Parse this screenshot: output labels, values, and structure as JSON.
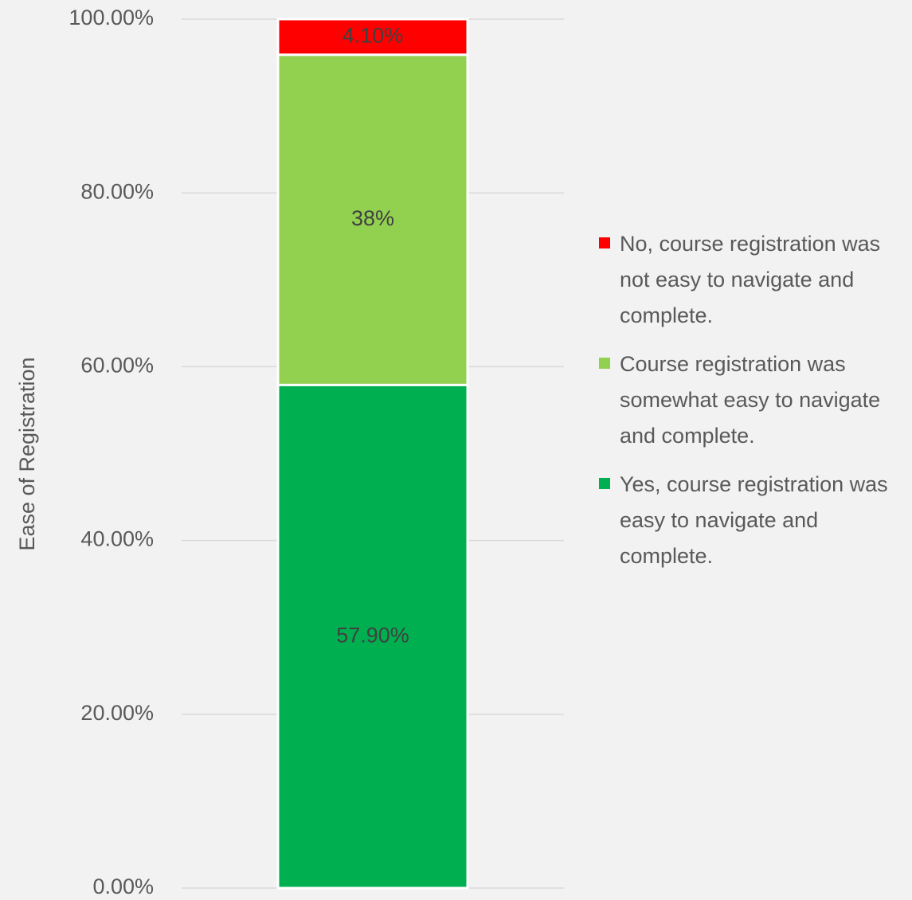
{
  "chart_data": {
    "type": "stacked_bar",
    "y_label": "Ease of Registration",
    "categories": [
      null
    ],
    "series": [
      {
        "name": "Yes, course registration was easy to navigate and complete.",
        "color": "#00b050",
        "values": [
          57.9
        ],
        "value_labels": [
          "57.90%"
        ]
      },
      {
        "name": "Course registration was somewhat easy to navigate and complete.",
        "color": "#92d050",
        "values": [
          38
        ],
        "value_labels": [
          "38%"
        ]
      },
      {
        "name": "No, course registration was not easy to navigate and complete.",
        "color": "#ff0000",
        "values": [
          4.1
        ],
        "value_labels": [
          "4.10%"
        ]
      }
    ],
    "ylim": [
      0,
      100
    ],
    "yticks": [
      {
        "value": 0,
        "label": "0.00%"
      },
      {
        "value": 20,
        "label": "20.00%"
      },
      {
        "value": 40,
        "label": "40.00%"
      },
      {
        "value": 60,
        "label": "60.00%"
      },
      {
        "value": 80,
        "label": "80.00%"
      },
      {
        "value": 100,
        "label": "100.00%"
      }
    ],
    "grid": true,
    "legend": "right"
  }
}
